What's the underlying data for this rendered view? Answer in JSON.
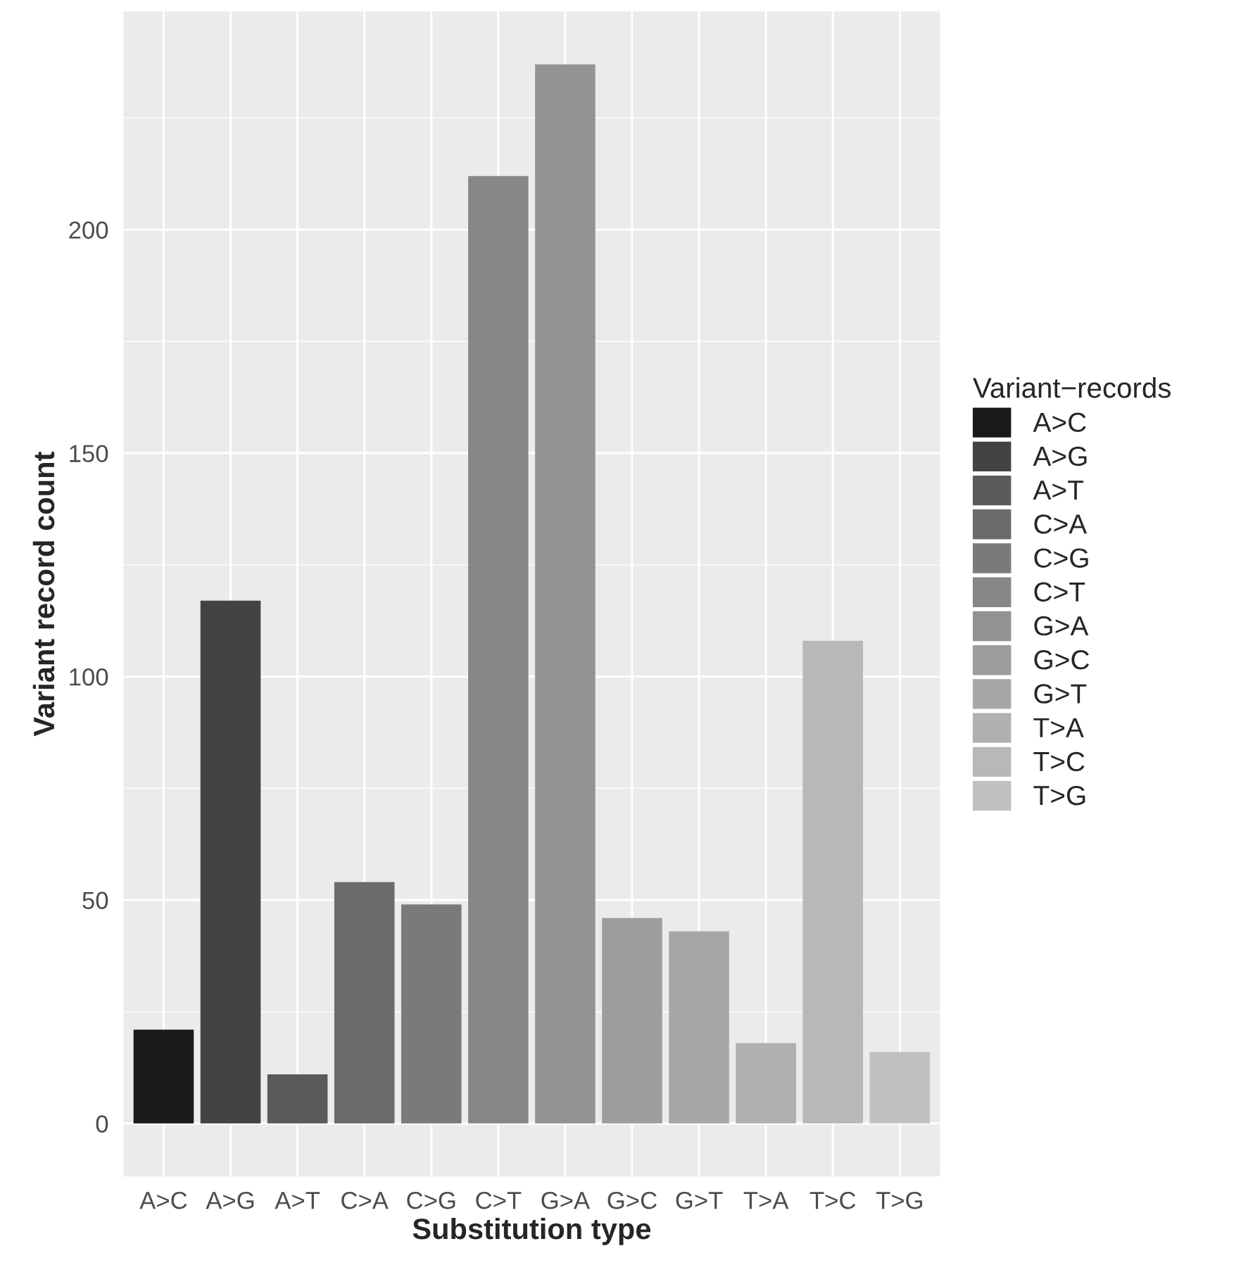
{
  "chart_data": {
    "type": "bar",
    "xlabel": "Substitution type",
    "ylabel": "Variant record count",
    "legend_title": "Variant−records",
    "categories": [
      "A>C",
      "A>G",
      "A>T",
      "C>A",
      "C>G",
      "C>T",
      "G>A",
      "G>C",
      "G>T",
      "T>A",
      "T>C",
      "T>G"
    ],
    "series": [
      {
        "name": "A>C",
        "color": "#1a1a1a",
        "values": [
          21,
          null,
          null,
          null,
          null,
          null,
          null,
          null,
          null,
          null,
          null,
          null
        ]
      },
      {
        "name": "A>G",
        "color": "#434343",
        "values": [
          null,
          117,
          null,
          null,
          null,
          null,
          null,
          null,
          null,
          null,
          null,
          null
        ]
      },
      {
        "name": "A>T",
        "color": "#5a5a5a",
        "values": [
          null,
          null,
          11,
          null,
          null,
          null,
          null,
          null,
          null,
          null,
          null,
          null
        ]
      },
      {
        "name": "C>A",
        "color": "#6b6b6b",
        "values": [
          null,
          null,
          null,
          54,
          null,
          null,
          null,
          null,
          null,
          null,
          null,
          null
        ]
      },
      {
        "name": "C>G",
        "color": "#7a7a7a",
        "values": [
          null,
          null,
          null,
          null,
          49,
          null,
          null,
          null,
          null,
          null,
          null,
          null
        ]
      },
      {
        "name": "C>T",
        "color": "#878787",
        "values": [
          null,
          null,
          null,
          null,
          null,
          212,
          null,
          null,
          null,
          null,
          null,
          null
        ]
      },
      {
        "name": "G>A",
        "color": "#939393",
        "values": [
          null,
          null,
          null,
          null,
          null,
          null,
          237,
          null,
          null,
          null,
          null,
          null
        ]
      },
      {
        "name": "G>C",
        "color": "#9d9d9d",
        "values": [
          null,
          null,
          null,
          null,
          null,
          null,
          null,
          46,
          null,
          null,
          null,
          null
        ]
      },
      {
        "name": "G>T",
        "color": "#a7a7a7",
        "values": [
          null,
          null,
          null,
          null,
          null,
          null,
          null,
          null,
          43,
          null,
          null,
          null
        ]
      },
      {
        "name": "T>A",
        "color": "#b0b0b0",
        "values": [
          null,
          null,
          null,
          null,
          null,
          null,
          null,
          null,
          null,
          18,
          null,
          null
        ]
      },
      {
        "name": "T>C",
        "color": "#b8b8b8",
        "values": [
          null,
          null,
          null,
          null,
          null,
          null,
          null,
          null,
          null,
          null,
          108,
          null
        ]
      },
      {
        "name": "T>G",
        "color": "#c0c0c0",
        "values": [
          null,
          null,
          null,
          null,
          null,
          null,
          null,
          null,
          null,
          null,
          null,
          16
        ]
      }
    ],
    "ylim": [
      -11.85,
      248.85
    ],
    "yticks": [
      0,
      50,
      100,
      150,
      200
    ],
    "grid": true,
    "legend": "right"
  }
}
